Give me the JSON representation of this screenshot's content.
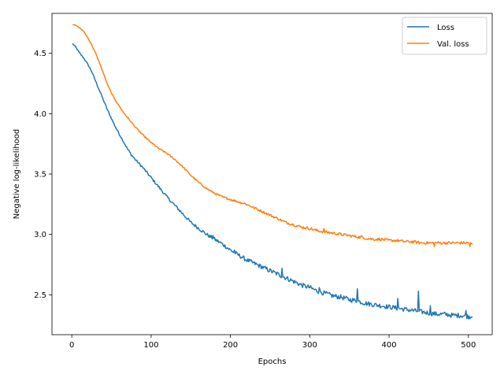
{
  "chart_data": {
    "type": "line",
    "xlabel": "Epochs",
    "ylabel": "Negative log-likelihood",
    "xlim": [
      -25,
      530
    ],
    "ylim": [
      2.17,
      4.83
    ],
    "xticks": [
      0,
      100,
      200,
      300,
      400,
      500
    ],
    "yticks": [
      2.5,
      3.0,
      3.5,
      4.0,
      4.5
    ],
    "xtick_labels": [
      "0",
      "100",
      "200",
      "300",
      "400",
      "500"
    ],
    "ytick_labels": [
      "2.5",
      "3.0",
      "3.5",
      "4.0",
      "4.5"
    ],
    "grid": false,
    "legend_position": "top-right",
    "series": [
      {
        "name": "Loss",
        "color": "#1f77b4",
        "x": [
          1,
          5,
          10,
          15,
          20,
          25,
          30,
          35,
          40,
          45,
          50,
          55,
          60,
          65,
          70,
          75,
          80,
          90,
          100,
          110,
          120,
          130,
          140,
          150,
          160,
          170,
          180,
          190,
          200,
          210,
          220,
          230,
          240,
          250,
          260,
          270,
          280,
          290,
          300,
          310,
          320,
          330,
          340,
          350,
          360,
          370,
          380,
          390,
          400,
          410,
          420,
          430,
          440,
          450,
          460,
          470,
          480,
          490,
          500,
          505
        ],
        "y": [
          4.58,
          4.55,
          4.5,
          4.46,
          4.41,
          4.35,
          4.27,
          4.19,
          4.11,
          4.03,
          3.96,
          3.89,
          3.83,
          3.77,
          3.71,
          3.66,
          3.62,
          3.55,
          3.47,
          3.39,
          3.31,
          3.24,
          3.17,
          3.1,
          3.05,
          3.0,
          2.96,
          2.92,
          2.87,
          2.83,
          2.79,
          2.76,
          2.73,
          2.7,
          2.67,
          2.64,
          2.61,
          2.58,
          2.56,
          2.53,
          2.51,
          2.49,
          2.48,
          2.46,
          2.45,
          2.43,
          2.42,
          2.41,
          2.4,
          2.39,
          2.38,
          2.37,
          2.36,
          2.35,
          2.34,
          2.34,
          2.33,
          2.33,
          2.32,
          2.32
        ],
        "spikes": [
          [
            178,
            2.99
          ],
          [
            205,
            2.87
          ],
          [
            265,
            2.72
          ],
          [
            312,
            2.56
          ],
          [
            360,
            2.55
          ],
          [
            411,
            2.47
          ],
          [
            437,
            2.53
          ],
          [
            452,
            2.41
          ],
          [
            497,
            2.37
          ]
        ]
      },
      {
        "name": "Val. loss",
        "color": "#ff7f0e",
        "x": [
          1,
          5,
          10,
          15,
          20,
          25,
          30,
          35,
          40,
          45,
          50,
          55,
          60,
          65,
          70,
          75,
          80,
          90,
          100,
          110,
          120,
          130,
          140,
          150,
          160,
          170,
          180,
          190,
          200,
          210,
          220,
          230,
          240,
          250,
          260,
          270,
          280,
          290,
          300,
          310,
          320,
          330,
          340,
          350,
          360,
          370,
          380,
          390,
          400,
          410,
          420,
          430,
          440,
          450,
          460,
          470,
          480,
          490,
          500,
          505
        ],
        "y": [
          4.74,
          4.73,
          4.71,
          4.68,
          4.63,
          4.57,
          4.5,
          4.42,
          4.33,
          4.24,
          4.17,
          4.11,
          4.06,
          4.01,
          3.97,
          3.93,
          3.89,
          3.82,
          3.76,
          3.71,
          3.67,
          3.62,
          3.56,
          3.49,
          3.43,
          3.38,
          3.34,
          3.31,
          3.29,
          3.27,
          3.25,
          3.22,
          3.19,
          3.16,
          3.13,
          3.1,
          3.08,
          3.06,
          3.05,
          3.03,
          3.02,
          3.01,
          3.0,
          2.99,
          2.98,
          2.97,
          2.96,
          2.96,
          2.95,
          2.95,
          2.94,
          2.94,
          2.93,
          2.93,
          2.93,
          2.93,
          2.93,
          2.93,
          2.93,
          2.92
        ],
        "spikes": [
          [
            218,
            3.26
          ],
          [
            318,
            3.05
          ],
          [
            365,
            2.99
          ],
          [
            457,
            2.9
          ],
          [
            502,
            2.9
          ]
        ]
      }
    ]
  }
}
